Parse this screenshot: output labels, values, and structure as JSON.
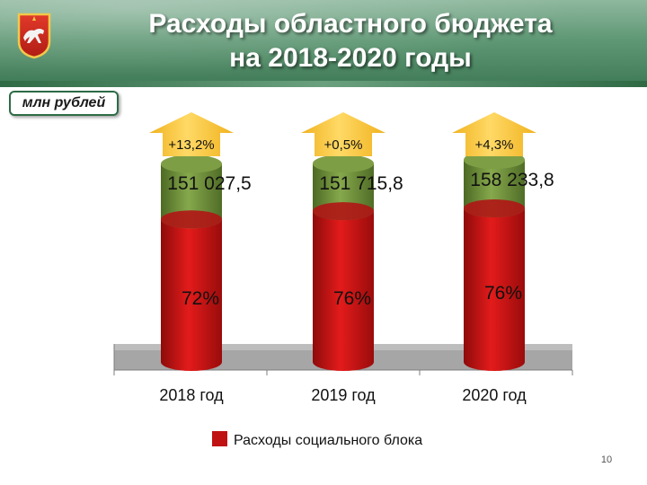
{
  "header": {
    "title_line1": "Расходы областного бюджета",
    "title_line2": "на 2018-2020 годы"
  },
  "unit_label": "млн рублей",
  "page_number": "10",
  "colors": {
    "social": "#c01212",
    "other": "#6b8c3a",
    "arrow": "#f6c23a",
    "floor": "#a6a6a6"
  },
  "chart_data": {
    "type": "bar",
    "stacked": true,
    "categories": [
      "2018 год",
      "2019 год",
      "2020 год"
    ],
    "totals": [
      151027.5,
      151715.8,
      158233.8
    ],
    "total_labels": [
      "151 027,5",
      "151 715,8",
      "158 233,8"
    ],
    "growth_labels": [
      "+13,2%",
      "+0,5%",
      "+4,3%"
    ],
    "social_share": [
      72,
      76,
      76
    ],
    "social_share_labels": [
      "72%",
      "76%",
      "76%"
    ],
    "series": [
      {
        "name": "Расходы социального блока",
        "color": "#c01212"
      }
    ],
    "legend": {
      "position": "bottom"
    },
    "grid": false
  }
}
